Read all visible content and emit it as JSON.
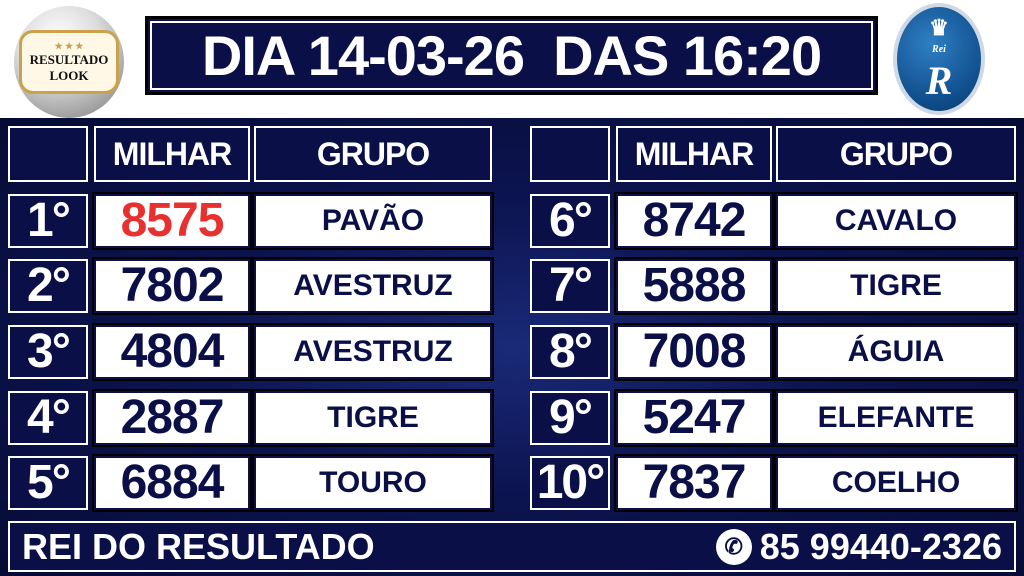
{
  "logos": {
    "left_text_1": "RESULTADO",
    "left_text_2": "LOOK",
    "left_stars": "★ ★ ★",
    "right_text": "Rei",
    "right_letter": "R"
  },
  "header": {
    "title": "DIA 14-03-26  DAS 16:20"
  },
  "columns": {
    "milhar": "MILHAR",
    "grupo": "GRUPO"
  },
  "colors": {
    "navy": "#0b0f48",
    "highlight": "#e8312f"
  },
  "results": [
    {
      "rank": "1°",
      "milhar": "8575",
      "grupo": "PAVÃO",
      "highlight": true
    },
    {
      "rank": "2°",
      "milhar": "7802",
      "grupo": "AVESTRUZ"
    },
    {
      "rank": "3°",
      "milhar": "4804",
      "grupo": "AVESTRUZ"
    },
    {
      "rank": "4°",
      "milhar": "2887",
      "grupo": "TIGRE"
    },
    {
      "rank": "5°",
      "milhar": "6884",
      "grupo": "TOURO"
    },
    {
      "rank": "6°",
      "milhar": "8742",
      "grupo": "CAVALO"
    },
    {
      "rank": "7°",
      "milhar": "5888",
      "grupo": "TIGRE"
    },
    {
      "rank": "8°",
      "milhar": "7008",
      "grupo": "ÁGUIA"
    },
    {
      "rank": "9°",
      "milhar": "5247",
      "grupo": "ELEFANTE"
    },
    {
      "rank": "10°",
      "milhar": "7837",
      "grupo": "COELHO"
    }
  ],
  "footer": {
    "brand": "REI DO RESULTADO",
    "phone": "85 99440-2326",
    "phone_icon": "whatsapp-icon"
  }
}
